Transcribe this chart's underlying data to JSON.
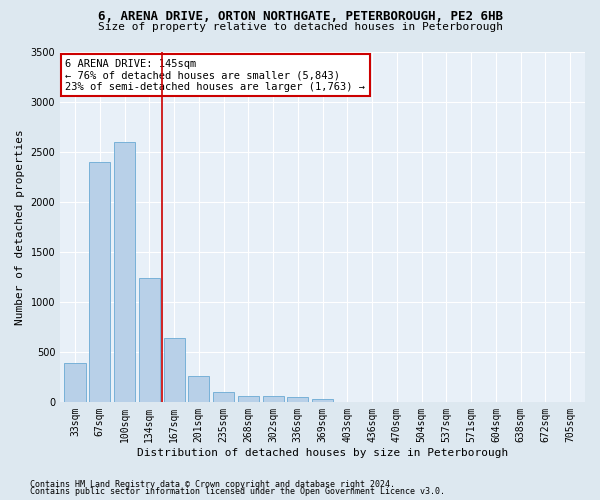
{
  "title": "6, ARENA DRIVE, ORTON NORTHGATE, PETERBOROUGH, PE2 6HB",
  "subtitle": "Size of property relative to detached houses in Peterborough",
  "xlabel": "Distribution of detached houses by size in Peterborough",
  "ylabel": "Number of detached properties",
  "categories": [
    "33sqm",
    "67sqm",
    "100sqm",
    "134sqm",
    "167sqm",
    "201sqm",
    "235sqm",
    "268sqm",
    "302sqm",
    "336sqm",
    "369sqm",
    "403sqm",
    "436sqm",
    "470sqm",
    "504sqm",
    "537sqm",
    "571sqm",
    "604sqm",
    "638sqm",
    "672sqm",
    "705sqm"
  ],
  "values": [
    390,
    2400,
    2600,
    1240,
    640,
    260,
    95,
    60,
    55,
    45,
    30,
    0,
    0,
    0,
    0,
    0,
    0,
    0,
    0,
    0,
    0
  ],
  "bar_color": "#b8d0e8",
  "bar_edge_color": "#6aaad4",
  "vline_color": "#cc0000",
  "vline_x": 3.5,
  "annotation_text": "6 ARENA DRIVE: 145sqm\n← 76% of detached houses are smaller (5,843)\n23% of semi-detached houses are larger (1,763) →",
  "annotation_box_color": "white",
  "annotation_box_edge": "#cc0000",
  "ylim": [
    0,
    3500
  ],
  "yticks": [
    0,
    500,
    1000,
    1500,
    2000,
    2500,
    3000,
    3500
  ],
  "footer1": "Contains HM Land Registry data © Crown copyright and database right 2024.",
  "footer2": "Contains public sector information licensed under the Open Government Licence v3.0.",
  "bg_color": "#dde8f0",
  "plot_bg_color": "#e8f0f8",
  "title_fontsize": 9,
  "subtitle_fontsize": 8,
  "axis_label_fontsize": 8,
  "tick_fontsize": 7,
  "annotation_fontsize": 7.5,
  "footer_fontsize": 6
}
